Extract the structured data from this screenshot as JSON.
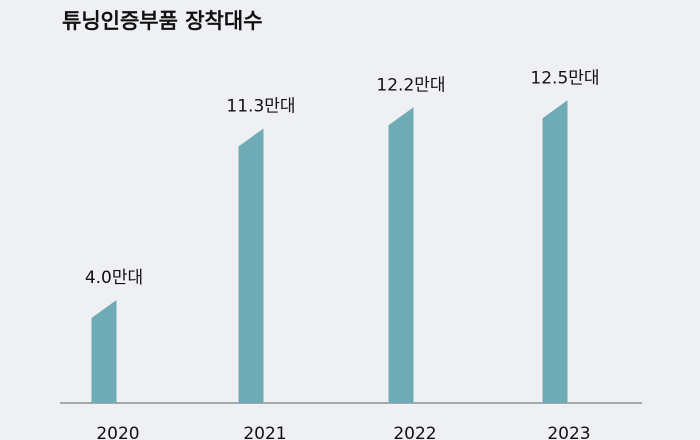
{
  "chart_data": {
    "type": "bar",
    "title": "튜닝인증부품 장착대수",
    "categories": [
      "2020",
      "2021",
      "2022",
      "2023"
    ],
    "values": [
      4.0,
      11.3,
      12.2,
      12.5
    ],
    "value_labels": [
      "4.0만대",
      "11.3만대",
      "12.2만대",
      "12.5만대"
    ],
    "color": "#6eabb5"
  }
}
